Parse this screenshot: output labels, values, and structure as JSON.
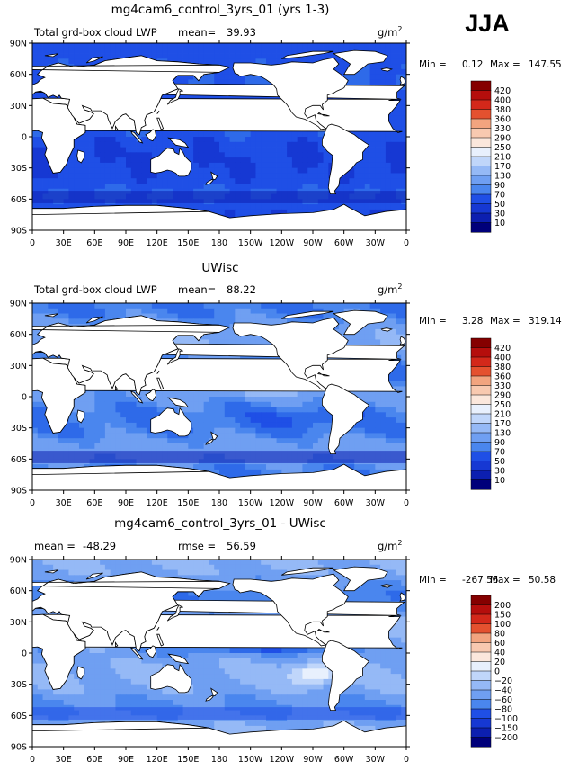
{
  "season": "JJA",
  "palettes": {
    "full": [
      "#00007a",
      "#0c1fb0",
      "#1638d3",
      "#1f4fe6",
      "#2e6ae9",
      "#4a86ee",
      "#6f9ff2",
      "#95b9f6",
      "#c0d6fa",
      "#e8f0fd",
      "#fbe7dc",
      "#f8c9b0",
      "#f2a47f",
      "#ec7a52",
      "#e4512f",
      "#d3281a",
      "#b50e0c",
      "#850000"
    ],
    "diff": [
      "#00007a",
      "#0c1fb0",
      "#1638d3",
      "#1f4fe6",
      "#2e6ae9",
      "#4a86ee",
      "#6f9ff2",
      "#95b9f6",
      "#c0d6fa",
      "#e8f0fd",
      "#fbe7dc",
      "#f8c9b0",
      "#f2a47f",
      "#ec7a52",
      "#e4512f",
      "#d3281a",
      "#b50e0c",
      "#850000"
    ]
  },
  "land_color": "#ffffff",
  "panels": [
    {
      "title": "mg4cam6_control_3yrs_01 (yrs 1-3)",
      "variable": "Total grd-box cloud LWP",
      "mean_label": "mean=",
      "mean_value": "39.93",
      "units": "g/m",
      "units_sup": "2",
      "min_label": "Min =",
      "min_value": "0.12",
      "max_label": "Max =",
      "max_value": "147.55",
      "colorbar": [
        "420",
        "400",
        "380",
        "360",
        "330",
        "290",
        "250",
        "210",
        "170",
        "130",
        "90",
        "70",
        "50",
        "30",
        "10"
      ],
      "field": "model"
    },
    {
      "title": "UWisc",
      "variable": "Total grd-box cloud LWP",
      "mean_label": "mean=",
      "mean_value": "88.22",
      "units": "g/m",
      "units_sup": "2",
      "min_label": "Min =",
      "min_value": "3.28",
      "max_label": "Max =",
      "max_value": "319.14",
      "colorbar": [
        "420",
        "400",
        "380",
        "360",
        "330",
        "290",
        "250",
        "210",
        "170",
        "130",
        "90",
        "70",
        "50",
        "30",
        "10"
      ],
      "field": "obs"
    },
    {
      "title": "mg4cam6_control_3yrs_01 - UWisc",
      "mean_label": "mean =",
      "mean_value": "-48.29",
      "rmse_label": "rmse =",
      "rmse_value": "56.59",
      "units": "g/m",
      "units_sup": "2",
      "min_label": "Min =",
      "min_value": "-267.55",
      "max_label": "Max =",
      "max_value": "50.58",
      "colorbar": [
        "200",
        "150",
        "100",
        "80",
        "60",
        "40",
        "20",
        "0",
        "−20",
        "−40",
        "−60",
        "−80",
        "−100",
        "−150",
        "−200"
      ],
      "field": "diff"
    }
  ],
  "axes": {
    "lat_ticks": [
      "90N",
      "60N",
      "30N",
      "0",
      "30S",
      "60S",
      "90S"
    ],
    "lon_ticks": [
      "0",
      "30E",
      "60E",
      "90E",
      "120E",
      "150E",
      "180",
      "150W",
      "120W",
      "90W",
      "60W",
      "30W",
      "0"
    ]
  }
}
